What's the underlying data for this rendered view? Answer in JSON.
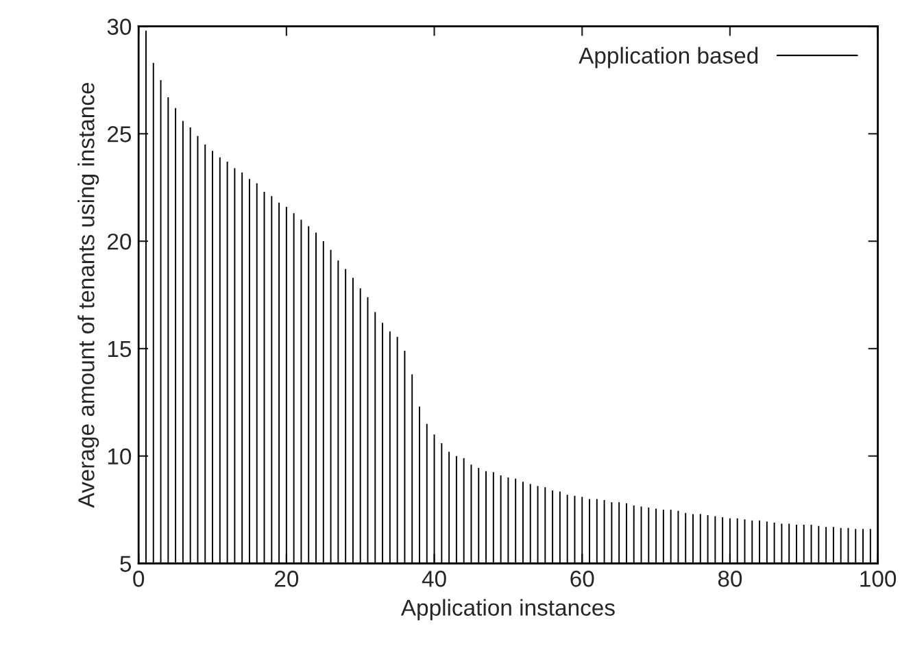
{
  "chart_data": {
    "type": "bar",
    "xlabel": "Application instances",
    "ylabel": "Average amount of tenants using instance",
    "x": [
      1,
      2,
      3,
      4,
      5,
      6,
      7,
      8,
      9,
      10,
      11,
      12,
      13,
      14,
      15,
      16,
      17,
      18,
      19,
      20,
      21,
      22,
      23,
      24,
      25,
      26,
      27,
      28,
      29,
      30,
      31,
      32,
      33,
      34,
      35,
      36,
      37,
      38,
      39,
      40,
      41,
      42,
      43,
      44,
      45,
      46,
      47,
      48,
      49,
      50,
      51,
      52,
      53,
      54,
      55,
      56,
      57,
      58,
      59,
      60,
      61,
      62,
      63,
      64,
      65,
      66,
      67,
      68,
      69,
      70,
      71,
      72,
      73,
      74,
      75,
      76,
      77,
      78,
      79,
      80,
      81,
      82,
      83,
      84,
      85,
      86,
      87,
      88,
      89,
      90,
      91,
      92,
      93,
      94,
      95,
      96,
      97,
      98,
      99
    ],
    "series": [
      {
        "name": "Application based",
        "color": "#000000",
        "values": [
          29.8,
          28.3,
          27.5,
          26.7,
          26.2,
          25.6,
          25.3,
          24.9,
          24.5,
          24.2,
          23.9,
          23.7,
          23.4,
          23.2,
          22.9,
          22.7,
          22.3,
          22.1,
          21.8,
          21.6,
          21.3,
          21.0,
          20.7,
          20.4,
          20.0,
          19.6,
          19.1,
          18.7,
          18.3,
          17.8,
          17.4,
          16.7,
          16.2,
          15.8,
          15.55,
          14.9,
          13.8,
          12.3,
          11.5,
          11.0,
          10.6,
          10.2,
          10.0,
          9.9,
          9.6,
          9.45,
          9.3,
          9.25,
          9.1,
          9.0,
          8.95,
          8.8,
          8.7,
          8.6,
          8.55,
          8.4,
          8.35,
          8.2,
          8.15,
          8.1,
          8.0,
          8.0,
          7.95,
          7.85,
          7.85,
          7.8,
          7.7,
          7.65,
          7.6,
          7.55,
          7.5,
          7.5,
          7.45,
          7.35,
          7.3,
          7.3,
          7.25,
          7.2,
          7.15,
          7.1,
          7.1,
          7.05,
          7.0,
          7.0,
          6.95,
          6.9,
          6.85,
          6.85,
          6.8,
          6.8,
          6.8,
          6.75,
          6.7,
          6.7,
          6.65,
          6.65,
          6.6,
          6.6,
          6.6
        ]
      }
    ],
    "xlim": [
      0,
      100
    ],
    "xticks": [
      0,
      20,
      40,
      60,
      80,
      100
    ],
    "ylim": [
      5,
      30
    ],
    "yticks": [
      5,
      10,
      15,
      20,
      25,
      30
    ],
    "legend": "top right"
  }
}
